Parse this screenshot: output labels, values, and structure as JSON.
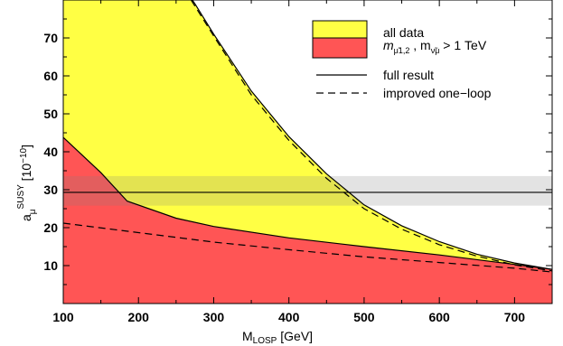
{
  "chart_data": {
    "type": "area",
    "xlabel": "M_LOSP [GeV]",
    "xlabel_main": "M",
    "xlabel_sub": "LOSP",
    "xlabel_unit": " [GeV]",
    "ylabel": "a_μ^SUSY [10^−10]",
    "ylabel_main": "a",
    "ylabel_sub": "μ",
    "ylabel_sup": "SUSY",
    "ylabel_unit": " [10",
    "ylabel_exp": "−10",
    "ylabel_close": "]",
    "xlim": [
      100,
      750
    ],
    "ylim": [
      0,
      80
    ],
    "x_ticks": [
      100,
      200,
      300,
      400,
      500,
      600,
      700
    ],
    "y_ticks": [
      10,
      20,
      30,
      40,
      50,
      60,
      70
    ],
    "band": {
      "y_low": 25.8,
      "y_high": 33.6,
      "y_central": 29.3
    },
    "series": [
      {
        "name": "all data",
        "color": "#ffff44",
        "upper": [
          [
            100,
            185
          ],
          [
            200,
            108
          ],
          [
            230,
            92
          ],
          [
            275,
            79
          ],
          [
            300,
            71
          ],
          [
            350,
            56
          ],
          [
            400,
            44
          ],
          [
            450,
            34.2
          ],
          [
            500,
            26
          ],
          [
            550,
            20.5
          ],
          [
            600,
            16.3
          ],
          [
            650,
            13
          ],
          [
            700,
            10.7
          ],
          [
            750,
            9
          ]
        ],
        "lower": [
          [
            100,
            21.5
          ],
          [
            200,
            19
          ],
          [
            300,
            16.6
          ],
          [
            400,
            14.6
          ],
          [
            500,
            12.8
          ],
          [
            600,
            11.2
          ],
          [
            700,
            9.6
          ],
          [
            750,
            8.8
          ]
        ]
      },
      {
        "name": "m_μ̃1,2 , m_ν̃μ > 1 TeV",
        "color": "#ff5555",
        "upper": [
          [
            100,
            43.8
          ],
          [
            150,
            34.5
          ],
          [
            185,
            27
          ],
          [
            250,
            22.5
          ],
          [
            300,
            20.3
          ],
          [
            400,
            17.3
          ],
          [
            500,
            15
          ],
          [
            600,
            12.8
          ],
          [
            700,
            10.3
          ],
          [
            750,
            9
          ]
        ]
      },
      {
        "name": "full result",
        "style": "solid"
      },
      {
        "name": "improved one−loop",
        "style": "dashed",
        "upper_dashed": [
          [
            270,
            80
          ],
          [
            300,
            70.5
          ],
          [
            350,
            55
          ],
          [
            400,
            43
          ],
          [
            450,
            33
          ],
          [
            500,
            25
          ],
          [
            550,
            19.6
          ],
          [
            600,
            15.5
          ],
          [
            650,
            12.5
          ],
          [
            700,
            10.2
          ],
          [
            750,
            8.6
          ]
        ],
        "lower_dashed": [
          [
            100,
            21.2
          ],
          [
            200,
            18.7
          ],
          [
            300,
            16.2
          ],
          [
            400,
            14.2
          ],
          [
            500,
            12.3
          ],
          [
            600,
            10.8
          ],
          [
            700,
            9.3
          ],
          [
            750,
            8.3
          ]
        ]
      }
    ],
    "legend": {
      "position": "top-right",
      "entries": [
        {
          "kind": "box",
          "color": "#ffff44",
          "label": "all data"
        },
        {
          "kind": "box",
          "color": "#ff5555",
          "label_main": "m",
          "label_sub1": "μ̃1,2",
          "label_mid": " , m",
          "label_sub2": "ν̃μ",
          "label_tail": "  > 1 TeV"
        },
        {
          "kind": "line",
          "style": "solid",
          "label": "full result"
        },
        {
          "kind": "line",
          "style": "dashed",
          "label": "improved one−loop"
        }
      ]
    },
    "grid": false
  }
}
